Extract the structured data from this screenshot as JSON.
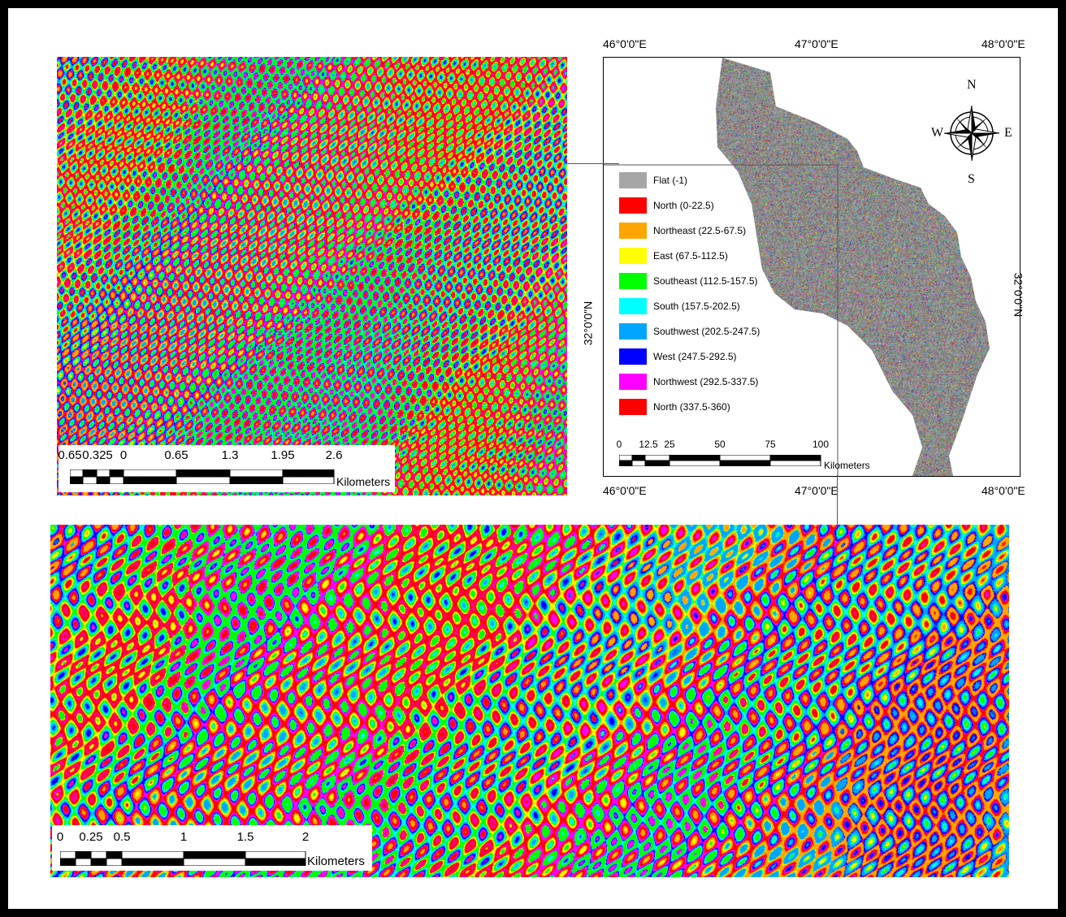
{
  "inset_top_scalebar": {
    "labels": [
      "0.65",
      "0.325",
      "0",
      "0.65",
      "1.3",
      "1.95",
      "2.6"
    ],
    "unit": "Kilometers"
  },
  "inset_bottom_scalebar": {
    "labels": [
      "0",
      "0.25",
      "0.5",
      "1",
      "1.5",
      "2"
    ],
    "unit": "Kilometers"
  },
  "overview_map": {
    "top_longitudes": [
      "46°0'0\"E",
      "47°0'0\"E",
      "48°0'0\"E"
    ],
    "bottom_longitudes": [
      "46°0'0\"E",
      "47°0'0\"E",
      "48°0'0\"E"
    ],
    "left_latitude": "32°0'0\"N",
    "right_latitude": "32°0'0\"N",
    "scalebar": {
      "labels": [
        "0",
        "12.5",
        "25",
        "50",
        "75",
        "100"
      ],
      "unit": "Kilometers"
    },
    "north_arrow": {
      "n": "N",
      "s": "S",
      "e": "E",
      "w": "W"
    }
  },
  "legend": {
    "items": [
      {
        "label": "Flat (-1)",
        "color": "#a6a6a6"
      },
      {
        "label": "North (0-22.5)",
        "color": "#ff0000"
      },
      {
        "label": "Northeast (22.5-67.5)",
        "color": "#ffa500"
      },
      {
        "label": "East (67.5-112.5)",
        "color": "#ffff00"
      },
      {
        "label": "Southeast (112.5-157.5)",
        "color": "#00ff00"
      },
      {
        "label": "South (157.5-202.5)",
        "color": "#00ffff"
      },
      {
        "label": "Southwest (202.5-247.5)",
        "color": "#00a5ff"
      },
      {
        "label": "West (247.5-292.5)",
        "color": "#0000ff"
      },
      {
        "label": "Northwest (292.5-337.5)",
        "color": "#ff00ff"
      },
      {
        "label": "North (337.5-360)",
        "color": "#ff0000"
      }
    ]
  }
}
